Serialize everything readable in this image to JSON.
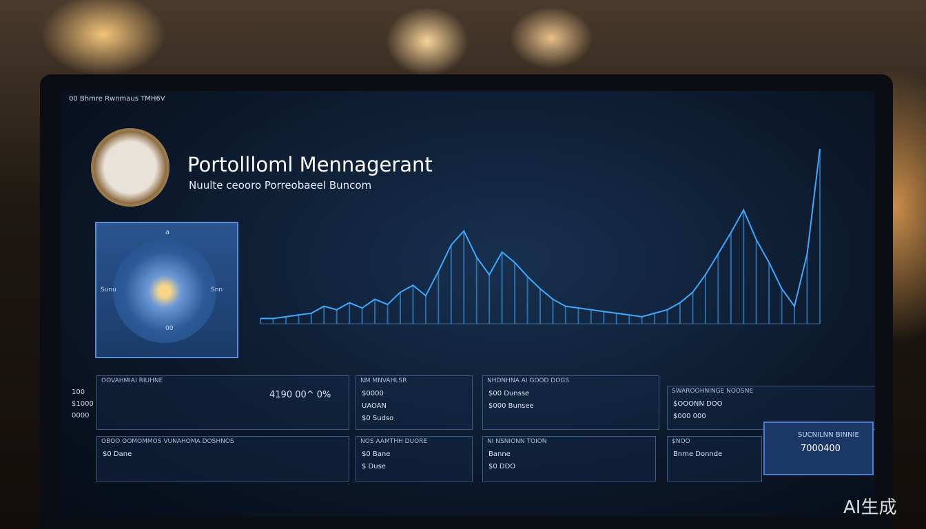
{
  "top_bar": {
    "title": "00 Bhmre Rwnmaus TMH6V"
  },
  "header": {
    "title": "Portollloml Mennagerant",
    "subtitle": "Nuulte ceooro Porreobaeel Buncom"
  },
  "gauge": {
    "top": "a",
    "left": "Sunu",
    "right": "Snn",
    "bottom": "00"
  },
  "side_labels": [
    "100",
    "$1000",
    "0000"
  ],
  "chart": {
    "type": "line",
    "color": "#3fa9ff",
    "ylim": [
      0,
      100
    ],
    "values": [
      3,
      3,
      4,
      5,
      6,
      10,
      8,
      12,
      9,
      14,
      11,
      18,
      22,
      16,
      30,
      45,
      53,
      38,
      28,
      41,
      35,
      27,
      20,
      14,
      10,
      9,
      8,
      7,
      6,
      5,
      4,
      6,
      8,
      12,
      18,
      28,
      40,
      52,
      65,
      48,
      35,
      20,
      10,
      40,
      100
    ]
  },
  "panels": [
    {
      "title": "OOVAHMIAI RIUHNE",
      "lines": [
        "4190 00^ 0%"
      ]
    },
    {
      "title": "NM MNVAHLSR",
      "lines": [
        "$0000",
        "UAOAN",
        "$0 Sudso"
      ]
    },
    {
      "title": "NHDNHNA AI GOOD DOGS",
      "lines": [
        "$00 Dunsse",
        "$000 Bunsee"
      ]
    },
    {
      "title": "SWAROOHNINGE NOOSNE",
      "lines": [
        "$OOONN DOO",
        "$000 000"
      ]
    },
    {
      "title": "OBOO OOMOMMOS  VUNAHOMA DOSHNOS",
      "lines": [
        "$0 Dane"
      ]
    },
    {
      "title": "NOS AAMTHH DUORE",
      "lines": [
        "$0 Bane",
        "$ Duse"
      ]
    },
    {
      "title": "NI NSNIONN TOION",
      "lines": [
        "Banne",
        "$0 DDO"
      ]
    },
    {
      "title": "$NOO",
      "lines": [
        "Bnme Donnde"
      ]
    }
  ],
  "highlight": {
    "title": "SUCNILNN BINNIE",
    "value": "7000400"
  },
  "watermark": "AI生成"
}
